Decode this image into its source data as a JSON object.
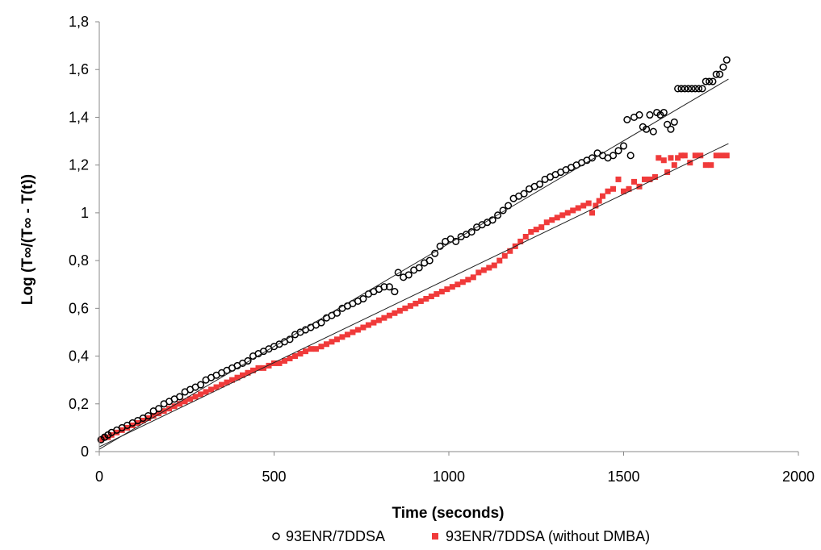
{
  "chart_data": {
    "type": "scatter",
    "title": "",
    "xlabel": "Time (seconds)",
    "ylabel": "Log (T∞/(T∞ - T(t))",
    "xlim": [
      0,
      2000
    ],
    "ylim": [
      0,
      1.8
    ],
    "xticks": [
      0,
      500,
      1000,
      1500,
      2000
    ],
    "yticks": [
      0,
      0.2,
      0.4,
      0.6,
      0.8,
      1,
      1.2,
      1.4,
      1.6,
      1.8
    ],
    "xtick_labels": [
      "0",
      "500",
      "1000",
      "1500",
      "2000"
    ],
    "ytick_labels": [
      "0",
      "0,2",
      "0,4",
      "0,6",
      "0,8",
      "1",
      "1,2",
      "1,4",
      "1,6",
      "1,8"
    ],
    "grid": false,
    "legend_position": "bottom",
    "series": [
      {
        "name": "93ENR/7DDSA",
        "marker": "open-circle",
        "color": "#000000",
        "trendline": {
          "x": [
            0,
            1800
          ],
          "y": [
            0.01,
            1.56
          ]
        },
        "points": [
          [
            5,
            0.05
          ],
          [
            15,
            0.06
          ],
          [
            25,
            0.07
          ],
          [
            35,
            0.08
          ],
          [
            50,
            0.09
          ],
          [
            65,
            0.1
          ],
          [
            80,
            0.11
          ],
          [
            95,
            0.12
          ],
          [
            110,
            0.13
          ],
          [
            125,
            0.14
          ],
          [
            140,
            0.15
          ],
          [
            155,
            0.17
          ],
          [
            170,
            0.18
          ],
          [
            185,
            0.2
          ],
          [
            200,
            0.21
          ],
          [
            215,
            0.22
          ],
          [
            230,
            0.23
          ],
          [
            245,
            0.25
          ],
          [
            260,
            0.26
          ],
          [
            275,
            0.27
          ],
          [
            290,
            0.28
          ],
          [
            305,
            0.3
          ],
          [
            320,
            0.31
          ],
          [
            335,
            0.32
          ],
          [
            350,
            0.33
          ],
          [
            365,
            0.34
          ],
          [
            380,
            0.35
          ],
          [
            395,
            0.36
          ],
          [
            410,
            0.37
          ],
          [
            425,
            0.38
          ],
          [
            440,
            0.4
          ],
          [
            455,
            0.41
          ],
          [
            470,
            0.42
          ],
          [
            485,
            0.43
          ],
          [
            500,
            0.44
          ],
          [
            515,
            0.45
          ],
          [
            530,
            0.46
          ],
          [
            545,
            0.47
          ],
          [
            560,
            0.49
          ],
          [
            575,
            0.5
          ],
          [
            590,
            0.51
          ],
          [
            605,
            0.52
          ],
          [
            620,
            0.53
          ],
          [
            635,
            0.54
          ],
          [
            650,
            0.56
          ],
          [
            665,
            0.57
          ],
          [
            680,
            0.58
          ],
          [
            695,
            0.6
          ],
          [
            710,
            0.61
          ],
          [
            725,
            0.62
          ],
          [
            740,
            0.63
          ],
          [
            755,
            0.64
          ],
          [
            770,
            0.66
          ],
          [
            785,
            0.67
          ],
          [
            800,
            0.68
          ],
          [
            815,
            0.69
          ],
          [
            830,
            0.69
          ],
          [
            845,
            0.67
          ],
          [
            855,
            0.75
          ],
          [
            870,
            0.73
          ],
          [
            885,
            0.74
          ],
          [
            900,
            0.76
          ],
          [
            915,
            0.77
          ],
          [
            930,
            0.79
          ],
          [
            945,
            0.8
          ],
          [
            960,
            0.83
          ],
          [
            975,
            0.86
          ],
          [
            990,
            0.88
          ],
          [
            1005,
            0.89
          ],
          [
            1020,
            0.88
          ],
          [
            1035,
            0.9
          ],
          [
            1050,
            0.91
          ],
          [
            1065,
            0.92
          ],
          [
            1080,
            0.94
          ],
          [
            1095,
            0.95
          ],
          [
            1110,
            0.96
          ],
          [
            1125,
            0.97
          ],
          [
            1140,
            0.99
          ],
          [
            1155,
            1.01
          ],
          [
            1170,
            1.03
          ],
          [
            1185,
            1.06
          ],
          [
            1200,
            1.07
          ],
          [
            1215,
            1.08
          ],
          [
            1230,
            1.1
          ],
          [
            1245,
            1.11
          ],
          [
            1260,
            1.12
          ],
          [
            1275,
            1.14
          ],
          [
            1290,
            1.15
          ],
          [
            1305,
            1.16
          ],
          [
            1320,
            1.17
          ],
          [
            1335,
            1.18
          ],
          [
            1350,
            1.19
          ],
          [
            1365,
            1.2
          ],
          [
            1380,
            1.21
          ],
          [
            1395,
            1.22
          ],
          [
            1410,
            1.23
          ],
          [
            1425,
            1.25
          ],
          [
            1440,
            1.24
          ],
          [
            1455,
            1.23
          ],
          [
            1470,
            1.24
          ],
          [
            1485,
            1.26
          ],
          [
            1500,
            1.28
          ],
          [
            1510,
            1.39
          ],
          [
            1520,
            1.24
          ],
          [
            1530,
            1.4
          ],
          [
            1545,
            1.41
          ],
          [
            1555,
            1.36
          ],
          [
            1565,
            1.35
          ],
          [
            1575,
            1.41
          ],
          [
            1585,
            1.34
          ],
          [
            1595,
            1.42
          ],
          [
            1605,
            1.41
          ],
          [
            1615,
            1.42
          ],
          [
            1625,
            1.37
          ],
          [
            1635,
            1.35
          ],
          [
            1645,
            1.38
          ],
          [
            1655,
            1.52
          ],
          [
            1665,
            1.52
          ],
          [
            1675,
            1.52
          ],
          [
            1685,
            1.52
          ],
          [
            1695,
            1.52
          ],
          [
            1705,
            1.52
          ],
          [
            1715,
            1.52
          ],
          [
            1725,
            1.52
          ],
          [
            1735,
            1.55
          ],
          [
            1745,
            1.55
          ],
          [
            1755,
            1.55
          ],
          [
            1765,
            1.58
          ],
          [
            1775,
            1.58
          ],
          [
            1785,
            1.61
          ],
          [
            1795,
            1.64
          ]
        ]
      },
      {
        "name": "93ENR/7DDSA (without DMBA)",
        "marker": "filled-square",
        "color": "#f03a3a",
        "trendline": {
          "x": [
            0,
            1800
          ],
          "y": [
            0.02,
            1.29
          ]
        },
        "points": [
          [
            5,
            0.05
          ],
          [
            15,
            0.06
          ],
          [
            25,
            0.06
          ],
          [
            35,
            0.07
          ],
          [
            50,
            0.08
          ],
          [
            65,
            0.09
          ],
          [
            80,
            0.1
          ],
          [
            95,
            0.11
          ],
          [
            110,
            0.12
          ],
          [
            125,
            0.13
          ],
          [
            140,
            0.14
          ],
          [
            155,
            0.15
          ],
          [
            170,
            0.16
          ],
          [
            185,
            0.17
          ],
          [
            200,
            0.18
          ],
          [
            215,
            0.19
          ],
          [
            230,
            0.2
          ],
          [
            245,
            0.21
          ],
          [
            260,
            0.22
          ],
          [
            275,
            0.23
          ],
          [
            290,
            0.24
          ],
          [
            305,
            0.25
          ],
          [
            320,
            0.26
          ],
          [
            335,
            0.27
          ],
          [
            350,
            0.28
          ],
          [
            365,
            0.29
          ],
          [
            380,
            0.3
          ],
          [
            395,
            0.31
          ],
          [
            410,
            0.32
          ],
          [
            425,
            0.33
          ],
          [
            440,
            0.34
          ],
          [
            455,
            0.35
          ],
          [
            470,
            0.35
          ],
          [
            485,
            0.36
          ],
          [
            500,
            0.37
          ],
          [
            515,
            0.37
          ],
          [
            530,
            0.38
          ],
          [
            545,
            0.39
          ],
          [
            560,
            0.4
          ],
          [
            575,
            0.41
          ],
          [
            590,
            0.42
          ],
          [
            605,
            0.43
          ],
          [
            620,
            0.43
          ],
          [
            635,
            0.44
          ],
          [
            650,
            0.45
          ],
          [
            665,
            0.46
          ],
          [
            680,
            0.47
          ],
          [
            695,
            0.48
          ],
          [
            710,
            0.49
          ],
          [
            725,
            0.5
          ],
          [
            740,
            0.51
          ],
          [
            755,
            0.52
          ],
          [
            770,
            0.53
          ],
          [
            785,
            0.54
          ],
          [
            800,
            0.55
          ],
          [
            815,
            0.56
          ],
          [
            830,
            0.57
          ],
          [
            845,
            0.58
          ],
          [
            860,
            0.59
          ],
          [
            875,
            0.6
          ],
          [
            890,
            0.61
          ],
          [
            905,
            0.62
          ],
          [
            920,
            0.63
          ],
          [
            935,
            0.64
          ],
          [
            950,
            0.65
          ],
          [
            965,
            0.66
          ],
          [
            980,
            0.67
          ],
          [
            995,
            0.68
          ],
          [
            1010,
            0.69
          ],
          [
            1025,
            0.7
          ],
          [
            1040,
            0.71
          ],
          [
            1055,
            0.72
          ],
          [
            1070,
            0.73
          ],
          [
            1085,
            0.75
          ],
          [
            1100,
            0.76
          ],
          [
            1115,
            0.77
          ],
          [
            1130,
            0.78
          ],
          [
            1145,
            0.8
          ],
          [
            1160,
            0.82
          ],
          [
            1175,
            0.84
          ],
          [
            1190,
            0.86
          ],
          [
            1205,
            0.88
          ],
          [
            1220,
            0.9
          ],
          [
            1235,
            0.92
          ],
          [
            1250,
            0.93
          ],
          [
            1265,
            0.94
          ],
          [
            1280,
            0.96
          ],
          [
            1295,
            0.97
          ],
          [
            1310,
            0.98
          ],
          [
            1325,
            0.99
          ],
          [
            1340,
            1.0
          ],
          [
            1355,
            1.01
          ],
          [
            1370,
            1.02
          ],
          [
            1385,
            1.03
          ],
          [
            1400,
            1.04
          ],
          [
            1410,
            1.0
          ],
          [
            1420,
            1.03
          ],
          [
            1430,
            1.05
          ],
          [
            1440,
            1.07
          ],
          [
            1455,
            1.09
          ],
          [
            1470,
            1.1
          ],
          [
            1485,
            1.14
          ],
          [
            1500,
            1.09
          ],
          [
            1515,
            1.1
          ],
          [
            1530,
            1.13
          ],
          [
            1545,
            1.11
          ],
          [
            1560,
            1.14
          ],
          [
            1575,
            1.14
          ],
          [
            1590,
            1.15
          ],
          [
            1600,
            1.23
          ],
          [
            1615,
            1.22
          ],
          [
            1625,
            1.17
          ],
          [
            1635,
            1.23
          ],
          [
            1645,
            1.2
          ],
          [
            1655,
            1.23
          ],
          [
            1665,
            1.24
          ],
          [
            1675,
            1.24
          ],
          [
            1690,
            1.21
          ],
          [
            1705,
            1.24
          ],
          [
            1720,
            1.24
          ],
          [
            1735,
            1.2
          ],
          [
            1750,
            1.2
          ],
          [
            1765,
            1.24
          ],
          [
            1780,
            1.24
          ],
          [
            1795,
            1.24
          ]
        ]
      }
    ]
  }
}
